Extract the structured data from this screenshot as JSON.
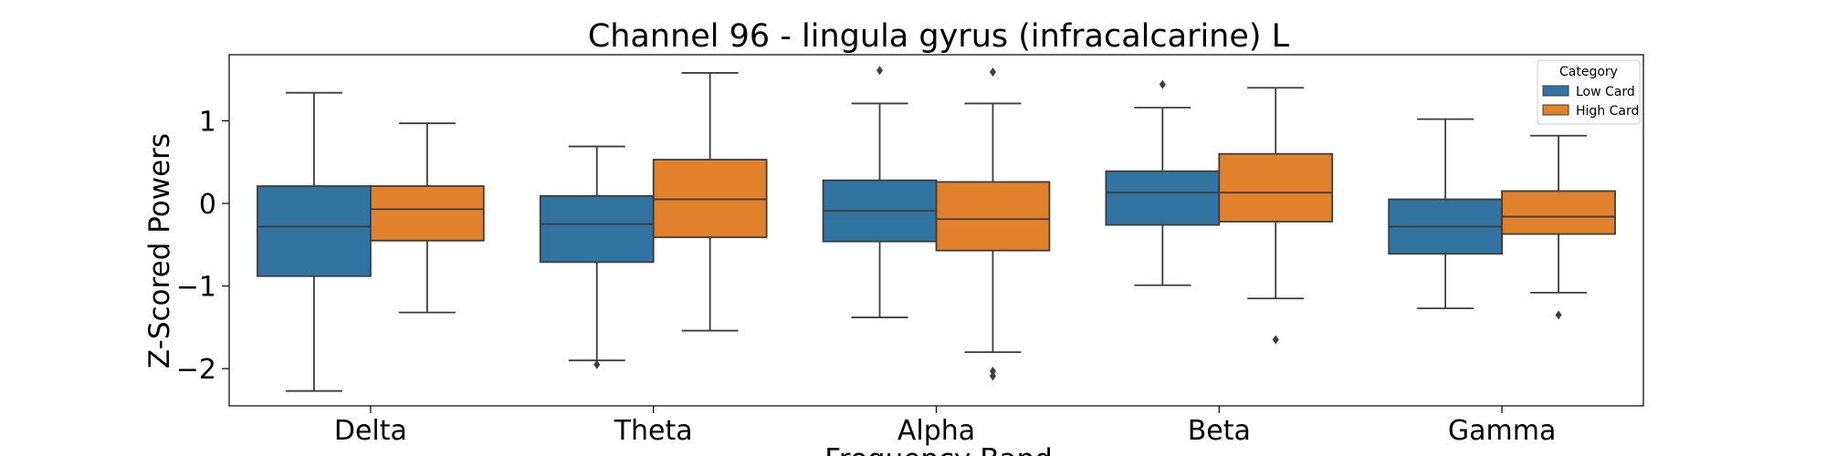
{
  "chart_data": {
    "type": "box",
    "title": "Channel 96 - lingula gyrus (infracalcarine) L",
    "xlabel": "Frequency Band",
    "ylabel": "Z-Scored Powers",
    "categories": [
      "Delta",
      "Theta",
      "Alpha",
      "Beta",
      "Gamma"
    ],
    "ylim": [
      -2.45,
      1.8
    ],
    "yticks": [
      -2,
      -1,
      0,
      1
    ],
    "ytick_labels": [
      "−2",
      "−1",
      "0",
      "1"
    ],
    "legend": {
      "title": "Category",
      "position": "top-right"
    },
    "series": [
      {
        "name": "Low Card",
        "color": "#3274a1",
        "boxes": [
          {
            "min": -2.27,
            "q1": -0.88,
            "median": -0.28,
            "q3": 0.21,
            "max": 1.34,
            "outliers": []
          },
          {
            "min": -1.9,
            "q1": -0.71,
            "median": -0.25,
            "q3": 0.09,
            "max": 0.69,
            "outliers": [
              -1.95
            ]
          },
          {
            "min": -1.38,
            "q1": -0.46,
            "median": -0.09,
            "q3": 0.28,
            "max": 1.21,
            "outliers": [
              1.61
            ]
          },
          {
            "min": -0.99,
            "q1": -0.26,
            "median": 0.13,
            "q3": 0.39,
            "max": 1.16,
            "outliers": [
              1.44
            ]
          },
          {
            "min": -1.27,
            "q1": -0.61,
            "median": -0.28,
            "q3": 0.05,
            "max": 1.02,
            "outliers": []
          }
        ]
      },
      {
        "name": "High Card",
        "color": "#e1812c",
        "boxes": [
          {
            "min": -1.32,
            "q1": -0.45,
            "median": -0.07,
            "q3": 0.21,
            "max": 0.97,
            "outliers": []
          },
          {
            "min": -1.54,
            "q1": -0.41,
            "median": 0.05,
            "q3": 0.53,
            "max": 1.58,
            "outliers": []
          },
          {
            "min": -1.8,
            "q1": -0.57,
            "median": -0.19,
            "q3": 0.26,
            "max": 1.21,
            "outliers": [
              -2.03,
              -2.09,
              1.59
            ]
          },
          {
            "min": -1.15,
            "q1": -0.22,
            "median": 0.13,
            "q3": 0.6,
            "max": 1.4,
            "outliers": [
              -1.65
            ]
          },
          {
            "min": -1.08,
            "q1": -0.37,
            "median": -0.16,
            "q3": 0.15,
            "max": 0.82,
            "outliers": [
              -1.35
            ]
          }
        ]
      }
    ]
  }
}
